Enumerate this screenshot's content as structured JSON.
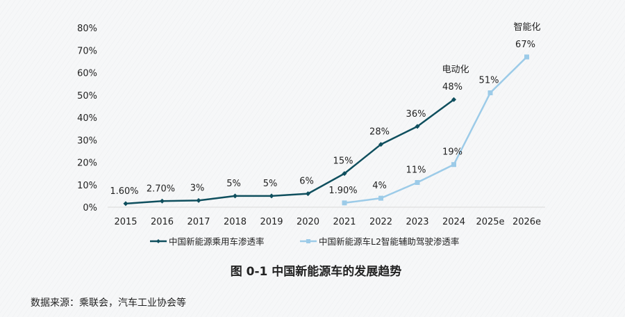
{
  "chart_data": {
    "type": "line",
    "title": "图 0-1 中国新能源车的发展趋势",
    "source": "数据来源：乘联会，汽车工业协会等",
    "xlabel": "",
    "ylabel": "",
    "categories": [
      "2015",
      "2016",
      "2017",
      "2018",
      "2019",
      "2020",
      "2021",
      "2022",
      "2023",
      "2024",
      "2025e",
      "2026e"
    ],
    "y_ticks": [
      "0%",
      "10%",
      "20%",
      "30%",
      "40%",
      "50%",
      "60%",
      "70%",
      "80%"
    ],
    "ylim": [
      0,
      80
    ],
    "grid": false,
    "legend_position": "bottom",
    "series": [
      {
        "name": "中国新能源乘用车渗透率",
        "color": "#0f4f5e",
        "marker": "diamond",
        "values": [
          1.6,
          2.7,
          3,
          5,
          5,
          6,
          15,
          28,
          36,
          48,
          null,
          null
        ],
        "labels": [
          "1.60%",
          "2.70%",
          "3%",
          "5%",
          "5%",
          "6%",
          "15%",
          "28%",
          "36%",
          "48%",
          null,
          null
        ]
      },
      {
        "name": "中国新能源车L2智能辅助驾驶渗透率",
        "color": "#9ccbe8",
        "marker": "square",
        "values": [
          null,
          null,
          null,
          null,
          null,
          null,
          1.9,
          4,
          11,
          19,
          51,
          67
        ],
        "labels": [
          null,
          null,
          null,
          null,
          null,
          null,
          "1.90%",
          "4%",
          "11%",
          "19%",
          "51%",
          "67%"
        ]
      }
    ],
    "annotations": [
      "电动化",
      "智能化"
    ]
  }
}
